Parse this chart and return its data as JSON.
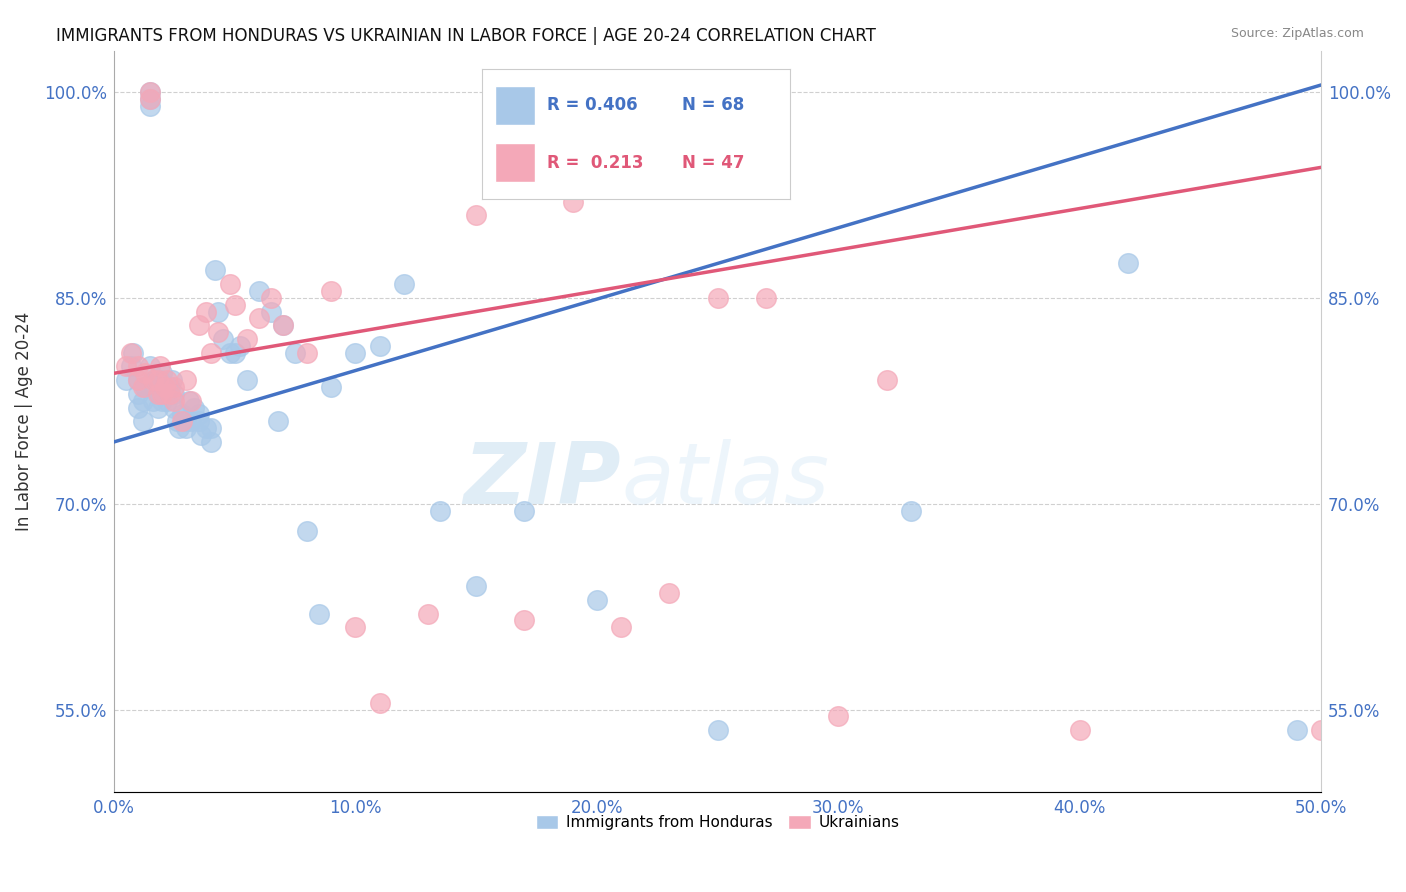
{
  "title": "IMMIGRANTS FROM HONDURAS VS UKRAINIAN IN LABOR FORCE | AGE 20-24 CORRELATION CHART",
  "source": "Source: ZipAtlas.com",
  "ylabel": "In Labor Force | Age 20-24",
  "xmin": 0.0,
  "xmax": 0.5,
  "ymin": 0.49,
  "ymax": 1.03,
  "yticks": [
    0.55,
    0.7,
    0.85,
    1.0
  ],
  "ytick_labels": [
    "55.0%",
    "70.0%",
    "85.0%",
    "100.0%"
  ],
  "xticks": [
    0.0,
    0.1,
    0.2,
    0.3,
    0.4,
    0.5
  ],
  "xtick_labels": [
    "0.0%",
    "10.0%",
    "20.0%",
    "30.0%",
    "40.0%",
    "50.0%"
  ],
  "legend_r_blue": "R = 0.406",
  "legend_n_blue": "N = 68",
  "legend_r_pink": "R =  0.213",
  "legend_n_pink": "N = 47",
  "blue_color": "#a8c8e8",
  "pink_color": "#f4a8b8",
  "blue_line_color": "#4472c4",
  "pink_line_color": "#e05878",
  "watermark_zip": "ZIP",
  "watermark_atlas": "atlas",
  "blue_intercept": 0.745,
  "blue_slope": 0.52,
  "pink_intercept": 0.795,
  "pink_slope": 0.3,
  "blue_x": [
    0.005,
    0.007,
    0.008,
    0.01,
    0.01,
    0.01,
    0.012,
    0.012,
    0.013,
    0.015,
    0.015,
    0.015,
    0.015,
    0.016,
    0.016,
    0.017,
    0.018,
    0.018,
    0.019,
    0.02,
    0.02,
    0.02,
    0.021,
    0.022,
    0.023,
    0.024,
    0.025,
    0.025,
    0.026,
    0.027,
    0.028,
    0.03,
    0.03,
    0.031,
    0.032,
    0.033,
    0.035,
    0.035,
    0.036,
    0.038,
    0.04,
    0.04,
    0.042,
    0.043,
    0.045,
    0.048,
    0.05,
    0.052,
    0.055,
    0.06,
    0.065,
    0.068,
    0.07,
    0.075,
    0.08,
    0.085,
    0.09,
    0.1,
    0.11,
    0.12,
    0.135,
    0.15,
    0.17,
    0.2,
    0.25,
    0.33,
    0.42,
    0.49
  ],
  "blue_y": [
    0.79,
    0.8,
    0.81,
    0.77,
    0.78,
    0.79,
    0.76,
    0.775,
    0.785,
    1.0,
    0.995,
    0.99,
    0.8,
    0.775,
    0.785,
    0.79,
    0.77,
    0.78,
    0.79,
    0.775,
    0.785,
    0.795,
    0.78,
    0.775,
    0.785,
    0.79,
    0.77,
    0.78,
    0.76,
    0.755,
    0.765,
    0.755,
    0.76,
    0.775,
    0.76,
    0.77,
    0.76,
    0.765,
    0.75,
    0.755,
    0.745,
    0.755,
    0.87,
    0.84,
    0.82,
    0.81,
    0.81,
    0.815,
    0.79,
    0.855,
    0.84,
    0.76,
    0.83,
    0.81,
    0.68,
    0.62,
    0.785,
    0.81,
    0.815,
    0.86,
    0.695,
    0.64,
    0.695,
    0.63,
    0.535,
    0.695,
    0.875,
    0.535
  ],
  "pink_x": [
    0.005,
    0.007,
    0.01,
    0.01,
    0.012,
    0.013,
    0.015,
    0.015,
    0.016,
    0.018,
    0.018,
    0.019,
    0.02,
    0.021,
    0.022,
    0.023,
    0.025,
    0.025,
    0.028,
    0.03,
    0.032,
    0.035,
    0.038,
    0.04,
    0.043,
    0.048,
    0.05,
    0.055,
    0.06,
    0.065,
    0.07,
    0.08,
    0.09,
    0.1,
    0.11,
    0.13,
    0.15,
    0.17,
    0.19,
    0.21,
    0.23,
    0.25,
    0.27,
    0.3,
    0.32,
    0.4,
    0.5
  ],
  "pink_y": [
    0.8,
    0.81,
    0.79,
    0.8,
    0.785,
    0.795,
    1.0,
    0.995,
    0.79,
    0.78,
    0.79,
    0.8,
    0.78,
    0.785,
    0.79,
    0.78,
    0.775,
    0.785,
    0.76,
    0.79,
    0.775,
    0.83,
    0.84,
    0.81,
    0.825,
    0.86,
    0.845,
    0.82,
    0.835,
    0.85,
    0.83,
    0.81,
    0.855,
    0.61,
    0.555,
    0.62,
    0.91,
    0.615,
    0.92,
    0.61,
    0.635,
    0.85,
    0.85,
    0.545,
    0.79,
    0.535,
    0.535
  ]
}
